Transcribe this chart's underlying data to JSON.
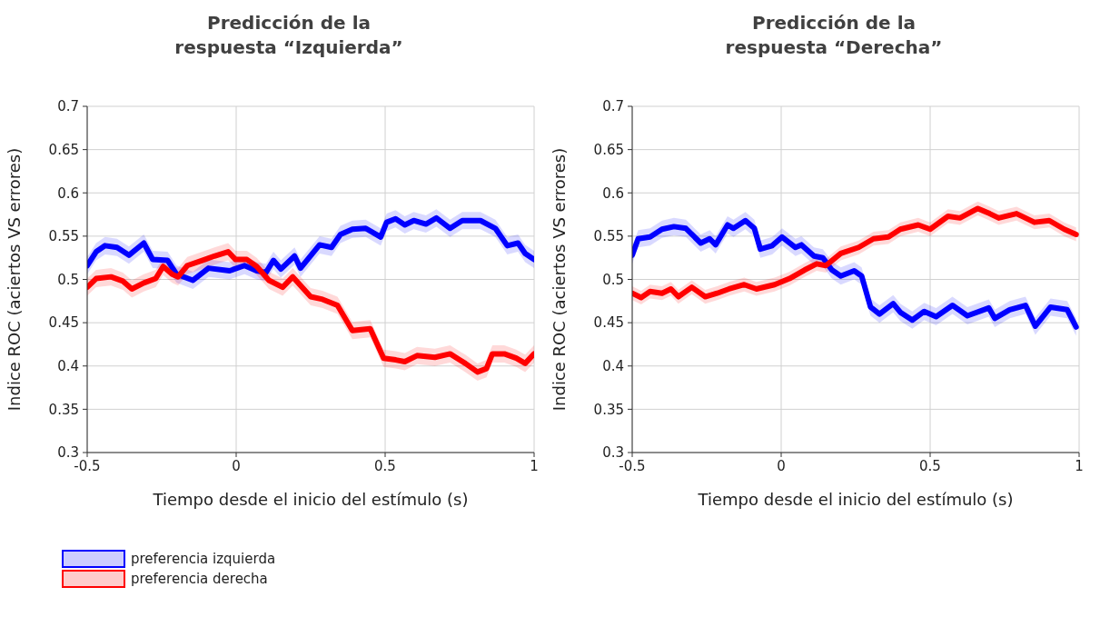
{
  "chart_data": [
    {
      "type": "line",
      "title": "Predicción de la\nrespuesta “Izquierda”",
      "xlabel": "Tiempo desde el inicio del estímulo (s)",
      "ylabel": "Indice ROC (aciertos VS errores)",
      "xlim": [
        -0.5,
        1
      ],
      "xticks": [
        -0.5,
        0,
        0.5,
        1
      ],
      "ylim": [
        0.3,
        0.7
      ],
      "yticks": [
        0.3,
        0.35,
        0.4,
        0.45,
        0.5,
        0.55,
        0.6,
        0.65,
        0.7
      ],
      "grid": true,
      "legend": "bottom left",
      "line_style": "solid",
      "marker": "none",
      "series": [
        {
          "name": "preferencia izquierda",
          "color": "#0000ff",
          "x": [
            -0.5,
            -0.47,
            -0.44,
            -0.4,
            -0.36,
            -0.31,
            -0.28,
            -0.23,
            -0.2,
            -0.145,
            -0.093,
            -0.022,
            0.028,
            0.069,
            0.1,
            0.125,
            0.15,
            0.196,
            0.216,
            0.28,
            0.32,
            0.35,
            0.39,
            0.435,
            0.485,
            0.505,
            0.535,
            0.566,
            0.596,
            0.637,
            0.672,
            0.718,
            0.759,
            0.82,
            0.87,
            0.91,
            0.946,
            0.97,
            1.0
          ],
          "values": [
            0.516,
            0.532,
            0.539,
            0.537,
            0.528,
            0.542,
            0.523,
            0.522,
            0.506,
            0.499,
            0.513,
            0.51,
            0.516,
            0.51,
            0.508,
            0.522,
            0.512,
            0.527,
            0.513,
            0.54,
            0.537,
            0.552,
            0.558,
            0.559,
            0.549,
            0.566,
            0.57,
            0.563,
            0.568,
            0.564,
            0.571,
            0.559,
            0.568,
            0.568,
            0.559,
            0.539,
            0.542,
            0.53,
            0.523
          ],
          "lower": [
            0.506,
            0.522,
            0.529,
            0.527,
            0.518,
            0.532,
            0.513,
            0.512,
            0.496,
            0.489,
            0.503,
            0.5,
            0.506,
            0.5,
            0.498,
            0.512,
            0.502,
            0.517,
            0.503,
            0.53,
            0.527,
            0.542,
            0.548,
            0.549,
            0.539,
            0.556,
            0.56,
            0.553,
            0.558,
            0.554,
            0.561,
            0.549,
            0.558,
            0.558,
            0.549,
            0.529,
            0.532,
            0.52,
            0.513
          ],
          "upper": [
            0.526,
            0.542,
            0.549,
            0.547,
            0.538,
            0.552,
            0.533,
            0.532,
            0.516,
            0.509,
            0.523,
            0.52,
            0.526,
            0.52,
            0.518,
            0.532,
            0.522,
            0.537,
            0.523,
            0.55,
            0.547,
            0.562,
            0.568,
            0.569,
            0.559,
            0.576,
            0.58,
            0.573,
            0.578,
            0.574,
            0.581,
            0.569,
            0.578,
            0.578,
            0.569,
            0.549,
            0.552,
            0.54,
            0.533
          ]
        },
        {
          "name": "preferencia derecha",
          "color": "#ff0000",
          "x": [
            -0.5,
            -0.47,
            -0.42,
            -0.38,
            -0.35,
            -0.31,
            -0.27,
            -0.245,
            -0.215,
            -0.195,
            -0.164,
            -0.114,
            -0.073,
            -0.027,
            -0.002,
            0.036,
            0.069,
            0.11,
            0.156,
            0.19,
            0.25,
            0.29,
            0.34,
            0.39,
            0.45,
            0.495,
            0.536,
            0.566,
            0.607,
            0.667,
            0.718,
            0.769,
            0.81,
            0.84,
            0.86,
            0.9,
            0.94,
            0.97,
            1.0
          ],
          "values": [
            0.491,
            0.501,
            0.503,
            0.498,
            0.489,
            0.496,
            0.501,
            0.515,
            0.506,
            0.503,
            0.516,
            0.522,
            0.527,
            0.532,
            0.523,
            0.523,
            0.515,
            0.499,
            0.491,
            0.503,
            0.48,
            0.477,
            0.47,
            0.441,
            0.443,
            0.409,
            0.407,
            0.405,
            0.412,
            0.41,
            0.414,
            0.403,
            0.393,
            0.397,
            0.414,
            0.414,
            0.409,
            0.403,
            0.414
          ],
          "lower": [
            0.481,
            0.491,
            0.493,
            0.488,
            0.479,
            0.486,
            0.491,
            0.505,
            0.496,
            0.493,
            0.506,
            0.512,
            0.517,
            0.522,
            0.513,
            0.513,
            0.505,
            0.489,
            0.481,
            0.493,
            0.47,
            0.467,
            0.46,
            0.431,
            0.433,
            0.399,
            0.397,
            0.395,
            0.402,
            0.4,
            0.404,
            0.393,
            0.383,
            0.387,
            0.404,
            0.404,
            0.399,
            0.393,
            0.404
          ],
          "upper": [
            0.501,
            0.511,
            0.513,
            0.508,
            0.499,
            0.506,
            0.511,
            0.525,
            0.516,
            0.513,
            0.526,
            0.532,
            0.537,
            0.542,
            0.533,
            0.533,
            0.525,
            0.509,
            0.501,
            0.513,
            0.49,
            0.487,
            0.48,
            0.451,
            0.453,
            0.419,
            0.417,
            0.415,
            0.422,
            0.42,
            0.424,
            0.413,
            0.403,
            0.407,
            0.424,
            0.424,
            0.419,
            0.413,
            0.424
          ]
        }
      ]
    },
    {
      "type": "line",
      "title": "Predicción de la\nrespuesta “Derecha”",
      "xlabel": "Tiempo desde el inicio del estímulo (s)",
      "ylabel": "Indice ROC (aciertos VS errores)",
      "xlim": [
        -0.5,
        1
      ],
      "xticks": [
        -0.5,
        0,
        0.5,
        1
      ],
      "ylim": [
        0.3,
        0.7
      ],
      "yticks": [
        0.3,
        0.35,
        0.4,
        0.45,
        0.5,
        0.55,
        0.6,
        0.65,
        0.7
      ],
      "grid": true,
      "line_style": "solid",
      "marker": "none",
      "series": [
        {
          "color": "#0000ff",
          "x": [
            -0.5,
            -0.48,
            -0.44,
            -0.4,
            -0.36,
            -0.32,
            -0.27,
            -0.24,
            -0.22,
            -0.18,
            -0.16,
            -0.12,
            -0.09,
            -0.07,
            -0.03,
            0.003,
            0.048,
            0.068,
            0.11,
            0.14,
            0.17,
            0.2,
            0.245,
            0.27,
            0.3,
            0.33,
            0.376,
            0.4,
            0.44,
            0.48,
            0.52,
            0.575,
            0.625,
            0.697,
            0.717,
            0.767,
            0.82,
            0.853,
            0.904,
            0.96,
            0.99
          ],
          "values": [
            0.528,
            0.547,
            0.549,
            0.558,
            0.561,
            0.559,
            0.542,
            0.547,
            0.54,
            0.563,
            0.559,
            0.568,
            0.559,
            0.535,
            0.539,
            0.549,
            0.537,
            0.54,
            0.527,
            0.525,
            0.511,
            0.504,
            0.51,
            0.504,
            0.468,
            0.46,
            0.472,
            0.462,
            0.453,
            0.463,
            0.457,
            0.47,
            0.458,
            0.467,
            0.455,
            0.465,
            0.47,
            0.446,
            0.468,
            0.465,
            0.445
          ],
          "lower": [
            0.518,
            0.537,
            0.539,
            0.548,
            0.551,
            0.549,
            0.532,
            0.537,
            0.53,
            0.553,
            0.549,
            0.558,
            0.549,
            0.525,
            0.529,
            0.539,
            0.527,
            0.53,
            0.517,
            0.515,
            0.501,
            0.494,
            0.5,
            0.494,
            0.458,
            0.45,
            0.462,
            0.452,
            0.443,
            0.453,
            0.447,
            0.46,
            0.448,
            0.457,
            0.445,
            0.455,
            0.46,
            0.436,
            0.458,
            0.455,
            0.435
          ],
          "upper": [
            0.538,
            0.557,
            0.559,
            0.568,
            0.571,
            0.569,
            0.552,
            0.557,
            0.55,
            0.573,
            0.569,
            0.578,
            0.569,
            0.545,
            0.549,
            0.559,
            0.547,
            0.55,
            0.537,
            0.535,
            0.521,
            0.514,
            0.52,
            0.514,
            0.478,
            0.47,
            0.482,
            0.472,
            0.463,
            0.473,
            0.467,
            0.48,
            0.468,
            0.477,
            0.465,
            0.475,
            0.48,
            0.456,
            0.478,
            0.475,
            0.455
          ]
        },
        {
          "color": "#ff0000",
          "x": [
            -0.5,
            -0.47,
            -0.44,
            -0.4,
            -0.37,
            -0.345,
            -0.3,
            -0.255,
            -0.215,
            -0.175,
            -0.124,
            -0.083,
            -0.022,
            0.028,
            0.079,
            0.119,
            0.15,
            0.2,
            0.26,
            0.31,
            0.36,
            0.4,
            0.46,
            0.5,
            0.56,
            0.6,
            0.66,
            0.7,
            0.73,
            0.79,
            0.85,
            0.9,
            0.95,
            0.99
          ],
          "values": [
            0.484,
            0.479,
            0.486,
            0.484,
            0.489,
            0.48,
            0.491,
            0.48,
            0.484,
            0.489,
            0.494,
            0.489,
            0.494,
            0.501,
            0.511,
            0.518,
            0.516,
            0.53,
            0.537,
            0.547,
            0.549,
            0.558,
            0.563,
            0.558,
            0.573,
            0.571,
            0.582,
            0.576,
            0.571,
            0.576,
            0.566,
            0.568,
            0.558,
            0.552
          ],
          "lower": [
            0.476,
            0.471,
            0.478,
            0.476,
            0.481,
            0.472,
            0.483,
            0.472,
            0.476,
            0.481,
            0.486,
            0.481,
            0.486,
            0.493,
            0.503,
            0.51,
            0.508,
            0.522,
            0.529,
            0.539,
            0.541,
            0.55,
            0.555,
            0.55,
            0.565,
            0.563,
            0.574,
            0.568,
            0.563,
            0.568,
            0.558,
            0.56,
            0.55,
            0.544
          ],
          "upper": [
            0.492,
            0.487,
            0.494,
            0.492,
            0.497,
            0.488,
            0.499,
            0.488,
            0.492,
            0.497,
            0.502,
            0.497,
            0.502,
            0.509,
            0.519,
            0.526,
            0.524,
            0.538,
            0.545,
            0.555,
            0.557,
            0.566,
            0.571,
            0.566,
            0.581,
            0.579,
            0.59,
            0.584,
            0.579,
            0.584,
            0.574,
            0.576,
            0.566,
            0.56
          ]
        }
      ]
    }
  ]
}
